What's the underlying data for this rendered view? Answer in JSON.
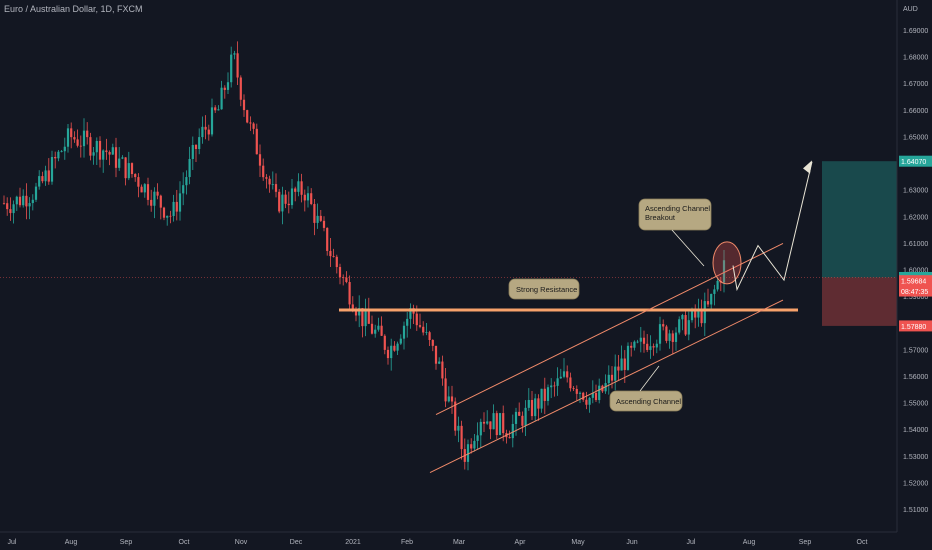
{
  "header": {
    "title": "Euro / Australian Dollar, 1D, FXCM"
  },
  "axis": {
    "currency": "AUD"
  },
  "chart_data": {
    "type": "candlestick",
    "title": "Euro / Australian Dollar, 1D, FXCM",
    "x_tick_labels": [
      "Jul",
      "Aug",
      "Sep",
      "Oct",
      "Nov",
      "Dec",
      "2021",
      "Feb",
      "Mar",
      "Apr",
      "May",
      "Jun",
      "Jul",
      "Aug",
      "Sep",
      "Oct"
    ],
    "y_tick_labels": [
      "1.69000",
      "1.68000",
      "1.67000",
      "1.66000",
      "1.65000",
      "1.64000",
      "1.63000",
      "1.62000",
      "1.61000",
      "1.60000",
      "1.59000",
      "1.58000",
      "1.57000",
      "1.56000",
      "1.55000",
      "1.54000",
      "1.53000",
      "1.52000",
      "1.51000"
    ],
    "ylim": [
      1.505,
      1.7
    ],
    "grid": false,
    "price_path": [
      {
        "date": "2020-07-01",
        "close": 1.625
      },
      {
        "date": "2020-07-15",
        "close": 1.63
      },
      {
        "date": "2020-08-01",
        "close": 1.65
      },
      {
        "date": "2020-08-20",
        "close": 1.645
      },
      {
        "date": "2020-09-05",
        "close": 1.635
      },
      {
        "date": "2020-09-25",
        "close": 1.62
      },
      {
        "date": "2020-10-10",
        "close": 1.65
      },
      {
        "date": "2020-10-20",
        "close": 1.66
      },
      {
        "date": "2020-10-28",
        "close": 1.68
      },
      {
        "date": "2020-11-05",
        "close": 1.655
      },
      {
        "date": "2020-11-20",
        "close": 1.625
      },
      {
        "date": "2020-12-05",
        "close": 1.63
      },
      {
        "date": "2020-12-20",
        "close": 1.605
      },
      {
        "date": "2021-01-05",
        "close": 1.582
      },
      {
        "date": "2021-01-20",
        "close": 1.57
      },
      {
        "date": "2021-02-01",
        "close": 1.585
      },
      {
        "date": "2021-02-15",
        "close": 1.565
      },
      {
        "date": "2021-03-01",
        "close": 1.53
      },
      {
        "date": "2021-03-10",
        "close": 1.545
      },
      {
        "date": "2021-03-25",
        "close": 1.54
      },
      {
        "date": "2021-04-10",
        "close": 1.55
      },
      {
        "date": "2021-04-25",
        "close": 1.56
      },
      {
        "date": "2021-05-10",
        "close": 1.55
      },
      {
        "date": "2021-05-25",
        "close": 1.565
      },
      {
        "date": "2021-06-10",
        "close": 1.575
      },
      {
        "date": "2021-06-25",
        "close": 1.578
      },
      {
        "date": "2021-07-10",
        "close": 1.585
      },
      {
        "date": "2021-07-20",
        "close": 1.604
      },
      {
        "date": "2021-07-26",
        "close": 1.597
      }
    ],
    "current_price": "1.59700",
    "price_labels": [
      {
        "value": "1.64070",
        "color": "#26a69a",
        "price": 1.6407
      },
      {
        "value": "1.59700",
        "color": "#26a69a",
        "price": 1.597
      },
      {
        "value": "1.59684",
        "color": "#ef5350",
        "price": 1.5958
      },
      {
        "value": "08:47:35",
        "color": "#ef5350",
        "price": 1.5919
      },
      {
        "value": "1.57880",
        "color": "#ef5350",
        "price": 1.5788
      }
    ],
    "annotations": [
      {
        "text": "Strong Resistance",
        "type": "horizontal-level",
        "price": 1.5848
      },
      {
        "text": "Ascending Channel",
        "type": "channel"
      },
      {
        "text": "Ascending Channel\nBreakout",
        "type": "callout"
      }
    ],
    "position": {
      "entry": 1.597,
      "target": 1.6407,
      "stop": 1.5788
    }
  }
}
